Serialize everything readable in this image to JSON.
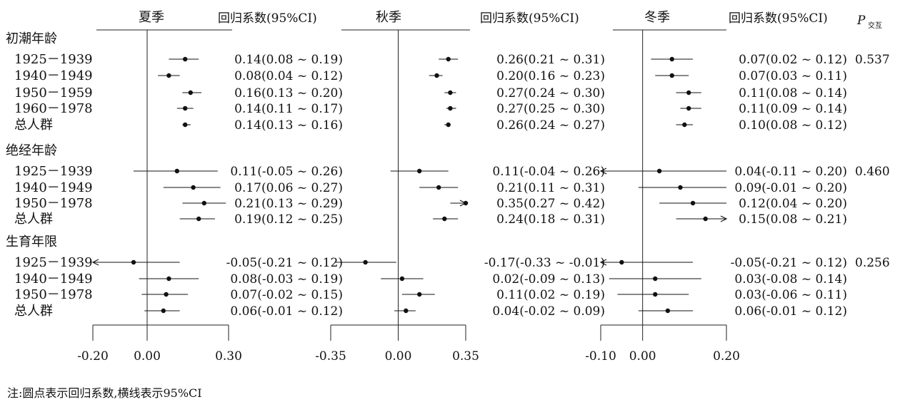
{
  "chart_data": {
    "type": "forest",
    "groups": [
      {
        "title": "初潮年龄",
        "rows": [
          {
            "label": "1925－1939"
          },
          {
            "label": "1940－1949"
          },
          {
            "label": "1950－1959"
          },
          {
            "label": "1960－1978"
          },
          {
            "label": "总人群"
          }
        ]
      },
      {
        "title": "绝经年龄",
        "rows": [
          {
            "label": "1925－1939"
          },
          {
            "label": "1940－1949"
          },
          {
            "label": "1950－1978"
          },
          {
            "label": "总人群"
          }
        ]
      },
      {
        "title": "生育年限",
        "rows": [
          {
            "label": "1925－1939"
          },
          {
            "label": "1940－1949"
          },
          {
            "label": "1950－1978"
          },
          {
            "label": "总人群"
          }
        ]
      }
    ],
    "p_header": "P",
    "p_header_sub": "交互",
    "p_values": [
      "0.537",
      "0.460",
      "0.256"
    ],
    "panels": [
      {
        "season": "夏季",
        "coef_header": "回归系数(95%CI)",
        "xlim": [
          -0.2,
          0.3
        ],
        "xticks": [
          "-0.20",
          "0.00",
          "0.30"
        ],
        "points": [
          {
            "est": 0.14,
            "lo": 0.08,
            "hi": 0.19,
            "text": "0.14(0.08 ~ 0.19)"
          },
          {
            "est": 0.08,
            "lo": 0.04,
            "hi": 0.12,
            "text": "0.08(0.04 ~ 0.12)"
          },
          {
            "est": 0.16,
            "lo": 0.13,
            "hi": 0.2,
            "text": "0.16(0.13 ~ 0.20)"
          },
          {
            "est": 0.14,
            "lo": 0.11,
            "hi": 0.17,
            "text": "0.14(0.11 ~ 0.17)"
          },
          {
            "est": 0.14,
            "lo": 0.13,
            "hi": 0.16,
            "text": "0.14(0.13 ~ 0.16)"
          },
          {
            "est": 0.11,
            "lo": -0.05,
            "hi": 0.26,
            "text": "0.11(-0.05 ~ 0.26)"
          },
          {
            "est": 0.17,
            "lo": 0.06,
            "hi": 0.27,
            "text": "0.17(0.06 ~ 0.27)"
          },
          {
            "est": 0.21,
            "lo": 0.13,
            "hi": 0.29,
            "text": "0.21(0.13 ~ 0.29)"
          },
          {
            "est": 0.19,
            "lo": 0.12,
            "hi": 0.25,
            "text": "0.19(0.12 ~ 0.25)"
          },
          {
            "est": -0.05,
            "lo": -0.21,
            "hi": 0.12,
            "text": "-0.05(-0.21 ~ 0.12)"
          },
          {
            "est": 0.08,
            "lo": -0.03,
            "hi": 0.19,
            "text": "0.08(-0.03 ~ 0.19)"
          },
          {
            "est": 0.07,
            "lo": -0.02,
            "hi": 0.15,
            "text": "0.07(-0.02 ~ 0.15)"
          },
          {
            "est": 0.06,
            "lo": -0.01,
            "hi": 0.12,
            "text": "0.06(-0.01 ~ 0.12)"
          }
        ]
      },
      {
        "season": "秋季",
        "coef_header": "回归系数(95%CI)",
        "xlim": [
          -0.35,
          0.35
        ],
        "xticks": [
          "-0.35",
          "0.00",
          "0.35"
        ],
        "points": [
          {
            "est": 0.26,
            "lo": 0.21,
            "hi": 0.31,
            "text": "0.26(0.21 ~ 0.31)"
          },
          {
            "est": 0.2,
            "lo": 0.16,
            "hi": 0.23,
            "text": "0.20(0.16 ~ 0.23)"
          },
          {
            "est": 0.27,
            "lo": 0.24,
            "hi": 0.3,
            "text": "0.27(0.24 ~ 0.30)"
          },
          {
            "est": 0.27,
            "lo": 0.25,
            "hi": 0.3,
            "text": "0.27(0.25 ~ 0.30)"
          },
          {
            "est": 0.26,
            "lo": 0.24,
            "hi": 0.27,
            "text": "0.26(0.24 ~ 0.27)"
          },
          {
            "est": 0.11,
            "lo": -0.04,
            "hi": 0.26,
            "text": "0.11(-0.04 ~ 0.26)"
          },
          {
            "est": 0.21,
            "lo": 0.11,
            "hi": 0.31,
            "text": "0.21(0.11 ~ 0.31)"
          },
          {
            "est": 0.35,
            "lo": 0.27,
            "hi": 0.42,
            "text": "0.35(0.27 ~ 0.42)"
          },
          {
            "est": 0.24,
            "lo": 0.18,
            "hi": 0.31,
            "text": "0.24(0.18 ~ 0.31)"
          },
          {
            "est": -0.17,
            "lo": -0.33,
            "hi": -0.01,
            "text": "-0.17(-0.33 ~ -0.01)"
          },
          {
            "est": 0.02,
            "lo": -0.09,
            "hi": 0.13,
            "text": "0.02(-0.09 ~ 0.13)"
          },
          {
            "est": 0.11,
            "lo": 0.02,
            "hi": 0.19,
            "text": "0.11(0.02 ~ 0.19)"
          },
          {
            "est": 0.04,
            "lo": -0.02,
            "hi": 0.09,
            "text": "0.04(-0.02 ~ 0.09)"
          }
        ]
      },
      {
        "season": "冬季",
        "coef_header": "回归系数(95%CI)",
        "xlim": [
          -0.1,
          0.2
        ],
        "xticks": [
          "-0.10",
          "0.00",
          "0.20"
        ],
        "points": [
          {
            "est": 0.07,
            "lo": 0.02,
            "hi": 0.12,
            "text": "0.07(0.02 ~ 0.12)"
          },
          {
            "est": 0.07,
            "lo": 0.03,
            "hi": 0.11,
            "text": "0.07(0.03 ~ 0.11)"
          },
          {
            "est": 0.11,
            "lo": 0.08,
            "hi": 0.14,
            "text": "0.11(0.08 ~ 0.14)"
          },
          {
            "est": 0.11,
            "lo": 0.09,
            "hi": 0.14,
            "text": "0.11(0.09 ~ 0.14)"
          },
          {
            "est": 0.1,
            "lo": 0.08,
            "hi": 0.12,
            "text": "0.10(0.08 ~ 0.12)"
          },
          {
            "est": 0.04,
            "lo": -0.11,
            "hi": 0.2,
            "text": "0.04(-0.11 ~ 0.20)"
          },
          {
            "est": 0.09,
            "lo": -0.01,
            "hi": 0.2,
            "text": "0.09(-0.01 ~ 0.20)"
          },
          {
            "est": 0.12,
            "lo": 0.04,
            "hi": 0.2,
            "text": "0.12(0.04 ~ 0.20)"
          },
          {
            "est": 0.15,
            "lo": 0.08,
            "hi": 0.21,
            "text": "0.15(0.08 ~ 0.21)"
          },
          {
            "est": -0.05,
            "lo": -0.21,
            "hi": 0.12,
            "text": "-0.05(-0.21 ~ 0.12)"
          },
          {
            "est": 0.03,
            "lo": -0.08,
            "hi": 0.14,
            "text": "0.03(-0.08 ~ 0.14)"
          },
          {
            "est": 0.03,
            "lo": -0.06,
            "hi": 0.11,
            "text": "0.03(-0.06 ~ 0.11)"
          },
          {
            "est": 0.06,
            "lo": -0.01,
            "hi": 0.12,
            "text": "0.06(-0.01 ~ 0.12)"
          }
        ]
      }
    ],
    "note": "注:圆点表示回归系数,横线表示95%CI"
  }
}
